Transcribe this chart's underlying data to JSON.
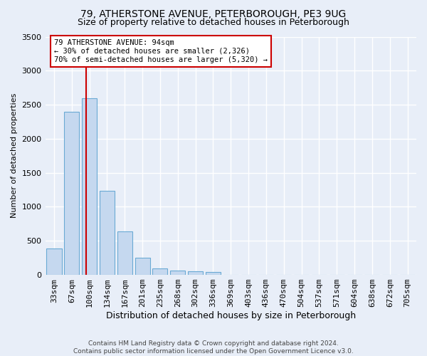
{
  "title": "79, ATHERSTONE AVENUE, PETERBOROUGH, PE3 9UG",
  "subtitle": "Size of property relative to detached houses in Peterborough",
  "xlabel": "Distribution of detached houses by size in Peterborough",
  "ylabel": "Number of detached properties",
  "footer_line1": "Contains HM Land Registry data © Crown copyright and database right 2024.",
  "footer_line2": "Contains public sector information licensed under the Open Government Licence v3.0.",
  "categories": [
    "33sqm",
    "67sqm",
    "100sqm",
    "134sqm",
    "167sqm",
    "201sqm",
    "235sqm",
    "268sqm",
    "302sqm",
    "336sqm",
    "369sqm",
    "403sqm",
    "436sqm",
    "470sqm",
    "504sqm",
    "537sqm",
    "571sqm",
    "604sqm",
    "638sqm",
    "672sqm",
    "705sqm"
  ],
  "bar_heights": [
    390,
    2400,
    2600,
    1240,
    640,
    255,
    95,
    60,
    55,
    40,
    0,
    0,
    0,
    0,
    0,
    0,
    0,
    0,
    0,
    0,
    0
  ],
  "bar_color": "#c5d8ef",
  "bar_edge_color": "#6aaad4",
  "ylim": [
    0,
    3500
  ],
  "yticks": [
    0,
    500,
    1000,
    1500,
    2000,
    2500,
    3000,
    3500
  ],
  "property_line_color": "#cc0000",
  "annotation_line1": "79 ATHERSTONE AVENUE: 94sqm",
  "annotation_line2": "← 30% of detached houses are smaller (2,326)",
  "annotation_line3": "70% of semi-detached houses are larger (5,320) →",
  "annotation_box_color": "#ffffff",
  "annotation_box_edge_color": "#cc0000",
  "bg_color": "#e8eef8",
  "plot_bg_color": "#e8eef8",
  "grid_color": "#ffffff",
  "title_fontsize": 10,
  "subtitle_fontsize": 9,
  "ylabel_fontsize": 8,
  "xlabel_fontsize": 9,
  "tick_fontsize": 8
}
